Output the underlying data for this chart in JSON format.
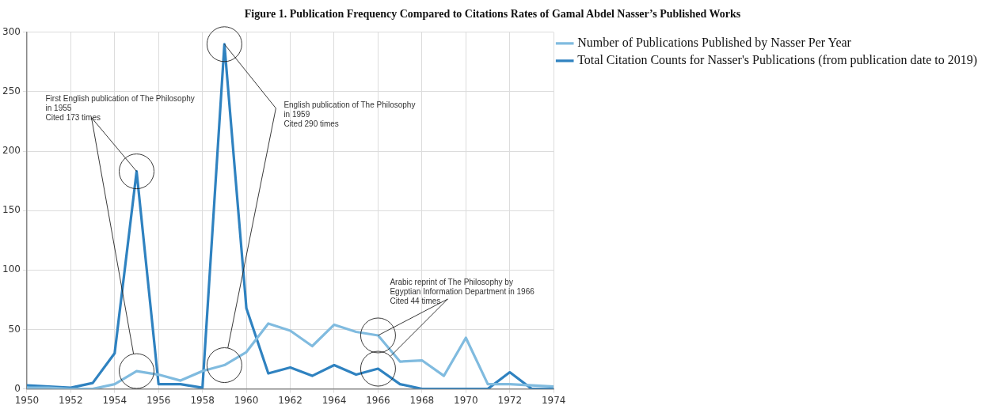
{
  "chart_data": {
    "type": "line",
    "title": "Figure 1. Publication Frequency Compared to Citations Rates of Gamal Abdel Nasser’s Published Works",
    "x": [
      1950,
      1951,
      1952,
      1953,
      1954,
      1955,
      1956,
      1957,
      1958,
      1959,
      1960,
      1961,
      1962,
      1963,
      1964,
      1965,
      1966,
      1967,
      1968,
      1969,
      1970,
      1971,
      1972,
      1973,
      1974
    ],
    "series": [
      {
        "name": "Number of Publications Published by Nasser Per Year",
        "color": "#80bbdf",
        "values": [
          1,
          1,
          0,
          0,
          4,
          15,
          12,
          7,
          15,
          20,
          31,
          55,
          49,
          36,
          54,
          48,
          45,
          23,
          24,
          11,
          43,
          4,
          4,
          3,
          2
        ]
      },
      {
        "name": "Total Citation Counts for Nasser's Publications (from publication date to 2019)",
        "color": "#2f82c0",
        "values": [
          3,
          2,
          1,
          5,
          30,
          183,
          4,
          4,
          1,
          290,
          68,
          13,
          18,
          11,
          20,
          12,
          17,
          4,
          0,
          0,
          0,
          0,
          14,
          0,
          0
        ]
      }
    ],
    "xlim": [
      1950,
      1974
    ],
    "xticks": [
      1950,
      1952,
      1954,
      1956,
      1958,
      1960,
      1962,
      1964,
      1966,
      1968,
      1970,
      1972,
      1974
    ],
    "ylim": [
      0,
      300
    ],
    "yticks": [
      0,
      50,
      100,
      150,
      200,
      250,
      300
    ],
    "grid": true,
    "legend": "top right",
    "marker": "none",
    "line_style": "solid",
    "annotations": [
      {
        "text": "First English publication of The Philosophy\nin 1955\nCited 173 times",
        "x": 1955,
        "y": 183
      },
      {
        "text": "English publication of The Philosophy\nin 1959\nCited 290 times",
        "x": 1959,
        "y": 290
      },
      {
        "text": "Arabic reprint of The Philosophy by\nEgyptian Information Department in 1966\nCited 44 times",
        "x": 1966,
        "y": 45
      }
    ]
  }
}
